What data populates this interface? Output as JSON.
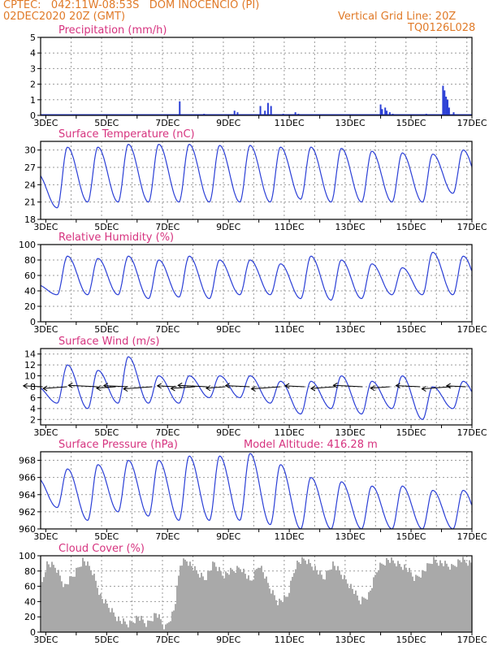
{
  "header": {
    "station": "CPTEC:   042:11W-08:53S   DOM INOCENCIO (PI)",
    "run": "02DEC2020 20Z (GMT)",
    "grid_note": "Vertical Grid Line: 20Z",
    "code": "TQ0126L028"
  },
  "colors": {
    "header": "#e07a28",
    "title": "#d6337f",
    "line": "#2b3fd6",
    "cloud": "#a9a9a9",
    "axis": "#000000",
    "grid": "#9a9a9a"
  },
  "chart_data": [
    {
      "type": "bar",
      "title": "Precipitation (mm/h)",
      "ylim": [
        0,
        5
      ],
      "yticks": [
        0,
        1,
        2,
        3,
        4,
        5
      ],
      "x_date_labels": [
        "3DEC",
        "5DEC",
        "7DEC",
        "9DEC",
        "11DEC",
        "13DEC",
        "15DEC",
        "17DEC"
      ],
      "x_range_days": [
        2.83,
        17.0
      ],
      "series": [
        {
          "x": [
            7.4,
            8.2,
            9.2,
            9.3,
            10.05,
            10.2,
            10.3,
            10.4,
            10.8,
            11.2,
            11.3,
            12.6,
            14.0,
            14.05,
            14.15,
            14.2,
            14.3,
            14.4,
            15.5,
            16.05,
            16.1,
            16.15,
            16.2,
            16.25,
            16.4
          ],
          "values": [
            0.9,
            0.1,
            0.3,
            0.2,
            0.6,
            0.3,
            0.8,
            0.6,
            0.1,
            0.2,
            0.1,
            0.05,
            0.7,
            0.4,
            0.5,
            0.3,
            0.2,
            0.1,
            0.1,
            1.9,
            1.6,
            1.2,
            1.0,
            0.5,
            0.2
          ]
        }
      ],
      "grid": true
    },
    {
      "type": "line",
      "title": "Surface Temperature (nC)",
      "ylim": [
        18,
        31.5
      ],
      "yticks": [
        18,
        21,
        24,
        27,
        30
      ],
      "x_date_labels": [
        "3DEC",
        "5DEC",
        "7DEC",
        "9DEC",
        "11DEC",
        "13DEC",
        "15DEC",
        "17DEC"
      ],
      "series": [
        {
          "daily_max": [
            26.0,
            30.5,
            30.5,
            31.0,
            31.0,
            31.0,
            30.8,
            30.8,
            30.5,
            30.5,
            30.3,
            29.8,
            29.5,
            29.3,
            30.0,
            31.0
          ],
          "daily_min": [
            19.0,
            20.0,
            21.0,
            21.0,
            21.0,
            21.0,
            21.0,
            21.0,
            21.0,
            21.5,
            21.0,
            21.0,
            21.0,
            21.0,
            22.5,
            22.5
          ]
        }
      ],
      "grid": true
    },
    {
      "type": "line",
      "title": "Relative Humidity (%)",
      "ylim": [
        0,
        100
      ],
      "yticks": [
        0,
        20,
        40,
        60,
        80,
        100
      ],
      "x_date_labels": [
        "3DEC",
        "5DEC",
        "7DEC",
        "9DEC",
        "11DEC",
        "13DEC",
        "15DEC",
        "17DEC"
      ],
      "series": [
        {
          "daily_max": [
            48,
            85,
            82,
            85,
            80,
            85,
            80,
            80,
            75,
            85,
            80,
            75,
            70,
            90,
            85,
            90
          ],
          "daily_min": [
            45,
            35,
            35,
            35,
            30,
            32,
            30,
            35,
            35,
            30,
            28,
            30,
            35,
            35,
            35,
            35
          ]
        }
      ],
      "grid": true
    },
    {
      "type": "line",
      "title": "Surface Wind (m/s)",
      "ylim": [
        1,
        15
      ],
      "yticks": [
        2,
        4,
        6,
        8,
        10,
        12,
        14
      ],
      "x_date_labels": [
        "3DEC",
        "5DEC",
        "7DEC",
        "9DEC",
        "11DEC",
        "13DEC",
        "15DEC",
        "17DEC"
      ],
      "series": [
        {
          "daily_max": [
            8,
            12,
            11,
            13.5,
            10,
            10,
            10,
            10,
            9,
            9,
            10,
            9,
            10,
            8,
            9,
            10
          ],
          "daily_min": [
            2,
            5,
            4,
            5,
            5,
            5,
            6,
            6,
            5,
            3,
            4,
            3,
            4,
            2,
            4,
            4
          ]
        }
      ],
      "wind_arrow_days": [
        2.9,
        3.7,
        4.7,
        5.3,
        5.7,
        6.5,
        7.3,
        7.9,
        8.3,
        8.9,
        9.7,
        10.7,
        11.5,
        12.5,
        13.4,
        14.3,
        15.3,
        16.3,
        16.8
      ],
      "grid": true
    },
    {
      "type": "line",
      "title": "Surface Pressure (hPa)",
      "annotation": "Model Altitude: 416.28 m",
      "ylim": [
        960,
        969
      ],
      "yticks": [
        960,
        962,
        964,
        966,
        968
      ],
      "x_date_labels": [
        "3DEC",
        "5DEC",
        "7DEC",
        "9DEC",
        "11DEC",
        "13DEC",
        "15DEC",
        "17DEC"
      ],
      "series": [
        {
          "daily_max": [
            966.0,
            967.0,
            967.5,
            968.0,
            968.0,
            968.5,
            968.5,
            968.8,
            967.5,
            966.0,
            965.5,
            965.0,
            965.0,
            964.5,
            964.5,
            964.0
          ],
          "daily_min": [
            963.0,
            962.5,
            961.0,
            962.0,
            961.5,
            961.0,
            961.0,
            961.0,
            960.5,
            960.0,
            960.0,
            960.0,
            960.0,
            960.0,
            960.0,
            960.0
          ]
        }
      ],
      "grid": true
    },
    {
      "type": "area",
      "title": "Cloud Cover (%)",
      "ylim": [
        0,
        100
      ],
      "yticks": [
        0,
        20,
        40,
        60,
        80,
        100
      ],
      "x_date_labels": [
        "3DEC",
        "5DEC",
        "7DEC",
        "9DEC",
        "11DEC",
        "13DEC",
        "15DEC",
        "17DEC"
      ],
      "series": [
        {
          "x": [
            2.83,
            3.0,
            3.3,
            3.6,
            3.9,
            4.2,
            4.5,
            4.8,
            5.1,
            5.4,
            5.7,
            6.0,
            6.3,
            6.6,
            6.9,
            7.2,
            7.4,
            7.6,
            7.9,
            8.2,
            8.5,
            8.8,
            9.1,
            9.4,
            9.7,
            10.0,
            10.3,
            10.6,
            10.9,
            11.2,
            11.5,
            11.8,
            12.1,
            12.4,
            12.7,
            13.0,
            13.3,
            13.6,
            13.9,
            14.2,
            14.5,
            14.8,
            15.1,
            15.4,
            15.7,
            16.0,
            16.3,
            16.6,
            16.9
          ],
          "values": [
            60,
            90,
            85,
            60,
            75,
            95,
            80,
            45,
            30,
            15,
            10,
            20,
            10,
            25,
            5,
            30,
            90,
            95,
            80,
            70,
            90,
            75,
            80,
            85,
            65,
            90,
            60,
            40,
            45,
            90,
            95,
            85,
            70,
            90,
            75,
            60,
            40,
            50,
            85,
            95,
            90,
            85,
            70,
            80,
            95,
            90,
            85,
            95,
            90
          ]
        }
      ],
      "grid": true
    }
  ]
}
